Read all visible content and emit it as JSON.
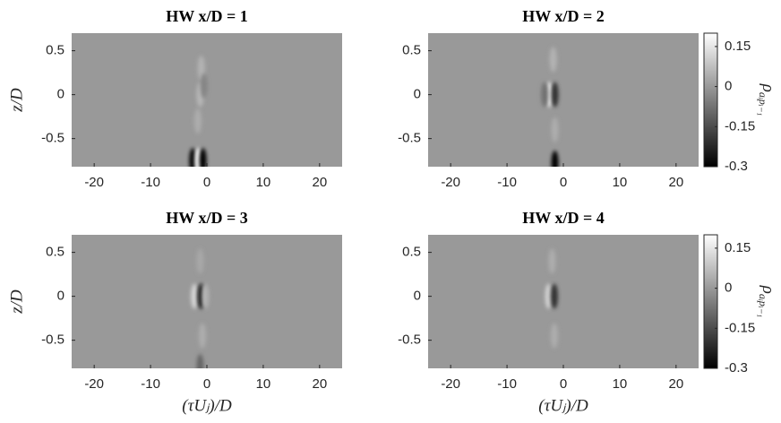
{
  "chart_data": [
    {
      "type": "heatmap",
      "title": "HW x/D = 1",
      "ylabel": "z/D",
      "xlim": [
        -24,
        24
      ],
      "xticks": [
        -20,
        -10,
        0,
        10,
        20
      ],
      "ylim": [
        -0.82,
        0.7
      ],
      "yticks": [
        0.5,
        0,
        -0.5
      ],
      "features": [
        {
          "x": -1,
          "z": 0.3,
          "value": 0.05
        },
        {
          "x": -1.2,
          "z": 0,
          "value": 0.06
        },
        {
          "x": -1.6,
          "z": -0.3,
          "value": 0.04
        },
        {
          "x": -0.5,
          "z": 0.1,
          "value": -0.04
        },
        {
          "x": -2.5,
          "z": -0.75,
          "value": -0.3
        },
        {
          "x": -1.5,
          "z": -0.75,
          "value": 0.2
        },
        {
          "x": -0.7,
          "z": -0.75,
          "value": -0.3
        }
      ]
    },
    {
      "type": "heatmap",
      "title": "HW x/D = 2",
      "xlim": [
        -24,
        24
      ],
      "xticks": [
        -20,
        -10,
        0,
        10,
        20
      ],
      "ylim": [
        -0.82,
        0.7
      ],
      "yticks": [
        0.5,
        0,
        -0.5
      ],
      "features": [
        {
          "x": -2.5,
          "z": 0,
          "value": 0.18
        },
        {
          "x": -1.5,
          "z": 0,
          "value": -0.2
        },
        {
          "x": -3.3,
          "z": 0,
          "value": -0.08
        },
        {
          "x": -1.8,
          "z": 0.4,
          "value": 0.05
        },
        {
          "x": -1.5,
          "z": -0.4,
          "value": 0.04
        },
        {
          "x": -1.5,
          "z": -0.78,
          "value": -0.3
        }
      ],
      "colorbar": {
        "lim": [
          -0.3,
          0.2
        ],
        "ticks": [
          0.15,
          0,
          -0.15,
          -0.3
        ],
        "label": "ρ",
        "label_subscript": "aᵢpᵢ₋₁"
      }
    },
    {
      "type": "heatmap",
      "title": "HW x/D = 3",
      "ylabel": "z/D",
      "xlabel": "(τUⱼ)/D",
      "xlim": [
        -24,
        24
      ],
      "xticks": [
        -20,
        -10,
        0,
        10,
        20
      ],
      "ylim": [
        -0.82,
        0.7
      ],
      "yticks": [
        0.5,
        0,
        -0.5
      ],
      "features": [
        {
          "x": -2.2,
          "z": 0,
          "value": 0.12
        },
        {
          "x": -1,
          "z": 0,
          "value": -0.28
        },
        {
          "x": -0.3,
          "z": 0,
          "value": 0.06
        },
        {
          "x": -1.2,
          "z": 0.4,
          "value": 0.03
        },
        {
          "x": -0.8,
          "z": -0.45,
          "value": 0.04
        },
        {
          "x": -1.2,
          "z": -0.8,
          "value": -0.1
        }
      ]
    },
    {
      "type": "heatmap",
      "title": "HW x/D = 4",
      "xlabel": "(τUⱼ)/D",
      "xlim": [
        -24,
        24
      ],
      "xticks": [
        -20,
        -10,
        0,
        10,
        20
      ],
      "ylim": [
        -0.82,
        0.7
      ],
      "yticks": [
        0.5,
        0,
        -0.5
      ],
      "features": [
        {
          "x": -2.6,
          "z": 0,
          "value": 0.12
        },
        {
          "x": -1.6,
          "z": 0,
          "value": -0.2
        },
        {
          "x": -2,
          "z": 0.4,
          "value": 0.04
        },
        {
          "x": -1.6,
          "z": -0.45,
          "value": 0.04
        }
      ],
      "colorbar": {
        "lim": [
          -0.3,
          0.2
        ],
        "ticks": [
          0.15,
          0,
          -0.15,
          -0.3
        ],
        "label": "ρ",
        "label_subscript": "aᵢpᵢ₋₁"
      }
    }
  ]
}
